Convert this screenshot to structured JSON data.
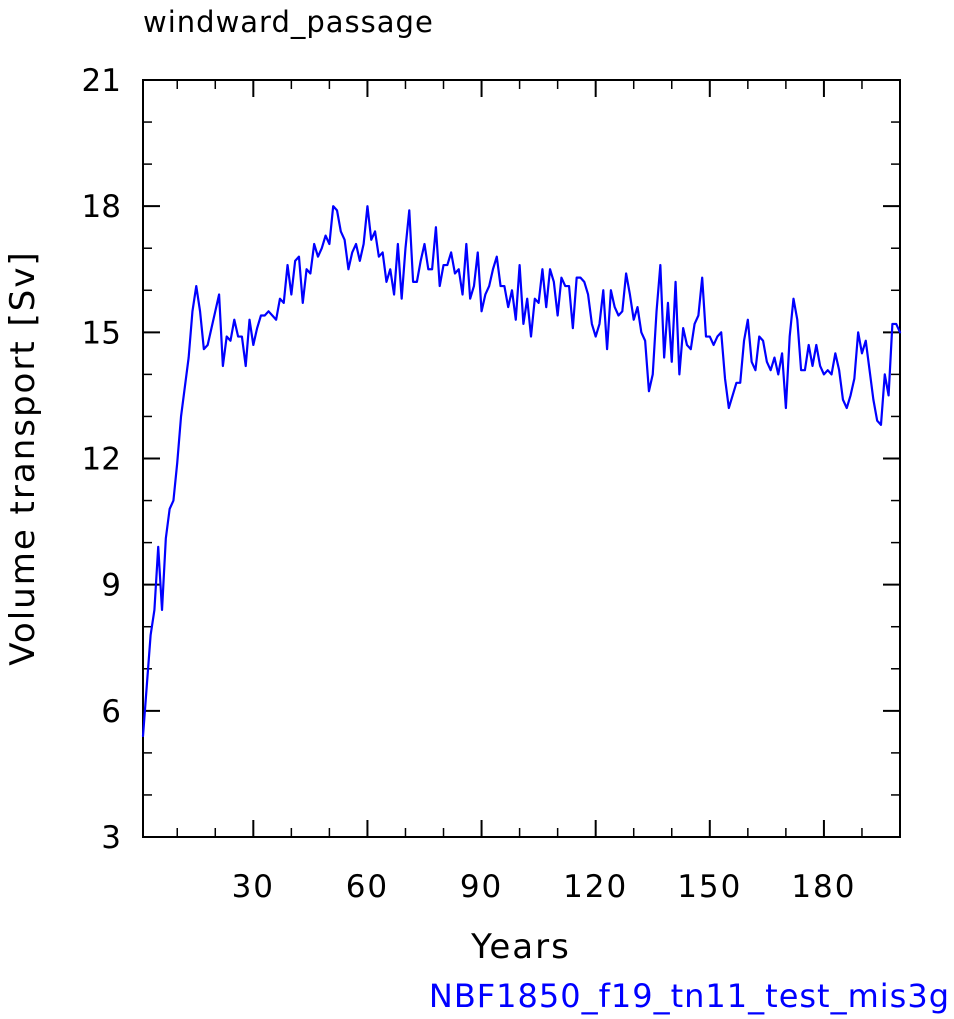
{
  "chart_data": {
    "type": "line",
    "title": "windward_passage",
    "subtitle": "NBF1850_f19_tn11_test_mis3g",
    "xlabel": "Years",
    "ylabel": "Volume transport [Sv]",
    "xlim": [
      1,
      200
    ],
    "ylim": [
      3,
      21
    ],
    "x_ticks": [
      30,
      60,
      90,
      120,
      150,
      180
    ],
    "x_tick_labels": [
      "30",
      "60",
      "90",
      "120",
      "150",
      "180"
    ],
    "y_ticks": [
      3,
      6,
      9,
      12,
      15,
      18,
      21
    ],
    "y_tick_labels": [
      "3",
      "6",
      "9",
      "12",
      "15",
      "18",
      "21"
    ],
    "grid": false,
    "series": [
      {
        "color": "#0000ff",
        "x": [
          1,
          2,
          3,
          4,
          5,
          6,
          7,
          8,
          9,
          10,
          11,
          12,
          13,
          14,
          15,
          16,
          17,
          18,
          19,
          20,
          21,
          22,
          23,
          24,
          25,
          26,
          27,
          28,
          29,
          30,
          31,
          32,
          33,
          34,
          35,
          36,
          37,
          38,
          39,
          40,
          41,
          42,
          43,
          44,
          45,
          46,
          47,
          48,
          49,
          50,
          51,
          52,
          53,
          54,
          55,
          56,
          57,
          58,
          59,
          60,
          61,
          62,
          63,
          64,
          65,
          66,
          67,
          68,
          69,
          70,
          71,
          72,
          73,
          74,
          75,
          76,
          77,
          78,
          79,
          80,
          81,
          82,
          83,
          84,
          85,
          86,
          87,
          88,
          89,
          90,
          91,
          92,
          93,
          94,
          95,
          96,
          97,
          98,
          99,
          100,
          101,
          102,
          103,
          104,
          105,
          106,
          107,
          108,
          109,
          110,
          111,
          112,
          113,
          114,
          115,
          116,
          117,
          118,
          119,
          120,
          121,
          122,
          123,
          124,
          125,
          126,
          127,
          128,
          129,
          130,
          131,
          132,
          133,
          134,
          135,
          136,
          137,
          138,
          139,
          140,
          141,
          142,
          143,
          144,
          145,
          146,
          147,
          148,
          149,
          150,
          151,
          152,
          153,
          154,
          155,
          156,
          157,
          158,
          159,
          160,
          161,
          162,
          163,
          164,
          165,
          166,
          167,
          168,
          169,
          170,
          171,
          172,
          173,
          174,
          175,
          176,
          177,
          178,
          179,
          180,
          181,
          182,
          183,
          184,
          185,
          186,
          187,
          188,
          189,
          190,
          191,
          192,
          193,
          194,
          195,
          196,
          197,
          198,
          199,
          200
        ],
        "values": [
          5.4,
          6.6,
          7.8,
          8.4,
          9.9,
          8.4,
          10.1,
          10.8,
          11.0,
          11.9,
          13.0,
          13.7,
          14.4,
          15.5,
          16.1,
          15.5,
          14.6,
          14.7,
          15.1,
          15.5,
          15.9,
          14.2,
          14.9,
          14.8,
          15.3,
          14.9,
          14.9,
          14.2,
          15.3,
          14.7,
          15.1,
          15.4,
          15.4,
          15.5,
          15.4,
          15.3,
          15.8,
          15.7,
          16.6,
          15.9,
          16.7,
          16.8,
          15.7,
          16.5,
          16.4,
          17.1,
          16.8,
          17.0,
          17.3,
          17.1,
          18.0,
          17.9,
          17.4,
          17.2,
          16.5,
          16.9,
          17.1,
          16.7,
          17.1,
          18.0,
          17.2,
          17.4,
          16.8,
          16.9,
          16.2,
          16.5,
          15.9,
          17.1,
          15.8,
          17.0,
          17.9,
          16.2,
          16.2,
          16.7,
          17.1,
          16.5,
          16.5,
          17.5,
          16.1,
          16.6,
          16.6,
          16.9,
          16.4,
          16.5,
          15.9,
          17.1,
          15.8,
          16.1,
          16.9,
          15.5,
          15.9,
          16.1,
          16.5,
          16.8,
          16.1,
          16.1,
          15.6,
          16.0,
          15.3,
          16.6,
          15.2,
          15.8,
          14.9,
          15.8,
          15.7,
          16.5,
          15.6,
          16.5,
          16.2,
          15.4,
          16.3,
          16.1,
          16.1,
          15.1,
          16.3,
          16.3,
          16.2,
          15.9,
          15.2,
          14.9,
          15.2,
          16.0,
          14.6,
          16.0,
          15.6,
          15.4,
          15.5,
          16.4,
          15.9,
          15.3,
          15.6,
          15.0,
          14.8,
          13.6,
          14.0,
          15.5,
          16.6,
          14.4,
          15.7,
          14.3,
          16.2,
          14.0,
          15.1,
          14.7,
          14.6,
          15.2,
          15.4,
          16.3,
          14.9,
          14.9,
          14.7,
          14.9,
          15.0,
          13.9,
          13.2,
          13.5,
          13.8,
          13.8,
          14.8,
          15.3,
          14.3,
          14.1,
          14.9,
          14.8,
          14.3,
          14.1,
          14.4,
          14.0,
          14.5,
          13.2,
          14.9,
          15.8,
          15.3,
          14.1,
          14.1,
          14.7,
          14.2,
          14.7,
          14.2,
          14.0,
          14.1,
          14.0,
          14.5,
          14.1,
          13.4,
          13.2,
          13.5,
          13.9,
          15.0,
          14.5,
          14.8,
          14.1,
          13.4,
          12.9,
          12.8,
          14.0,
          13.5,
          15.2,
          15.2,
          15.0
        ]
      }
    ]
  }
}
